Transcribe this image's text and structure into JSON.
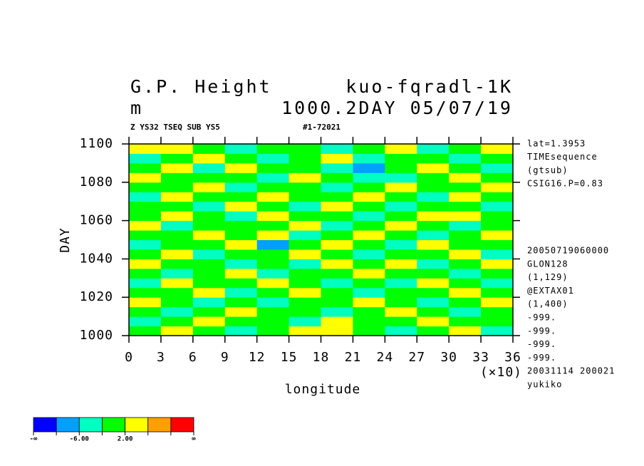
{
  "chart_data": {
    "type": "contour",
    "title_left": "G.P. Height",
    "title_right": "kuo-fqradl-1K",
    "subtitle_left": "m",
    "subtitle_right": "1000.2DAY 05/07/19",
    "header_left": "Z YS32 TSEQ SUB YS5",
    "header_right": "#1-72021",
    "xlabel": "longitude",
    "x_multiplier": "(×10)",
    "ylabel": "DAY",
    "xlim": [
      0,
      36
    ],
    "xticks": [
      0,
      3,
      6,
      9,
      12,
      15,
      18,
      21,
      24,
      27,
      30,
      33,
      36
    ],
    "ylim": [
      1000,
      1100
    ],
    "yticks": [
      1000,
      1020,
      1040,
      1060,
      1080,
      1100
    ],
    "notes_top": [
      "lat=1.3953",
      "TIMEsequence",
      "(gtsub)",
      "CSIG16.P=0.83"
    ],
    "notes_bottom": [
      "20050719060000",
      "GLON128",
      "(1,129)",
      "@EXTAX01",
      "(1,400)",
      "-999.",
      "-999.",
      "-999.",
      "-999.",
      "20031114 200021",
      "yukiko"
    ],
    "colorbar": {
      "colors": [
        "#0000ff",
        "#00a0ff",
        "#00ffc0",
        "#00ff00",
        "#ffff00",
        "#ffa000",
        "#ff0000"
      ],
      "boundaries": [
        null,
        -10,
        -6,
        -2,
        2,
        6,
        10,
        null
      ],
      "boundary_labels": [
        "-∞",
        null,
        "-6.00",
        null,
        "2.00",
        null,
        null,
        "∞"
      ]
    },
    "z": [
      [
        0,
        4,
        0,
        -4,
        0,
        4,
        4,
        0,
        -4,
        0,
        4,
        -4
      ],
      [
        -4,
        0,
        4,
        0,
        0,
        -4,
        4,
        0,
        0,
        4,
        0,
        0
      ],
      [
        0,
        -4,
        0,
        4,
        0,
        0,
        -4,
        0,
        4,
        0,
        -4,
        0
      ],
      [
        4,
        0,
        -4,
        0,
        -4,
        0,
        0,
        4,
        0,
        -4,
        0,
        4
      ],
      [
        0,
        0,
        4,
        -4,
        0,
        4,
        0,
        -4,
        0,
        0,
        4,
        0
      ],
      [
        -4,
        4,
        0,
        0,
        4,
        0,
        -4,
        0,
        -4,
        4,
        0,
        -4
      ],
      [
        0,
        -4,
        0,
        4,
        -4,
        0,
        0,
        4,
        0,
        0,
        -4,
        0
      ],
      [
        4,
        0,
        0,
        -4,
        0,
        -4,
        4,
        0,
        4,
        -4,
        0,
        4
      ],
      [
        0,
        4,
        -4,
        0,
        0,
        4,
        0,
        -4,
        0,
        0,
        4,
        -4
      ],
      [
        -4,
        0,
        0,
        4,
        -8,
        0,
        4,
        0,
        -4,
        4,
        0,
        0
      ],
      [
        0,
        0,
        4,
        0,
        4,
        -4,
        0,
        4,
        0,
        -4,
        0,
        4
      ],
      [
        4,
        -4,
        0,
        0,
        0,
        4,
        -4,
        0,
        4,
        0,
        -4,
        0
      ],
      [
        0,
        4,
        0,
        -4,
        4,
        0,
        0,
        -4,
        0,
        4,
        4,
        0
      ],
      [
        0,
        0,
        -4,
        4,
        0,
        -4,
        4,
        0,
        -4,
        0,
        0,
        -4
      ],
      [
        -4,
        4,
        0,
        0,
        4,
        0,
        0,
        4,
        0,
        -4,
        4,
        0
      ],
      [
        0,
        0,
        4,
        -4,
        0,
        0,
        -4,
        0,
        4,
        0,
        0,
        4
      ],
      [
        4,
        0,
        0,
        0,
        -4,
        4,
        0,
        -4,
        -4,
        0,
        4,
        0
      ],
      [
        0,
        4,
        -4,
        4,
        0,
        0,
        -4,
        -8,
        0,
        4,
        0,
        -4
      ],
      [
        -4,
        0,
        4,
        0,
        -4,
        0,
        4,
        -4,
        0,
        0,
        -4,
        0
      ],
      [
        4,
        4,
        0,
        -4,
        0,
        0,
        -4,
        0,
        4,
        -4,
        0,
        4
      ]
    ]
  }
}
